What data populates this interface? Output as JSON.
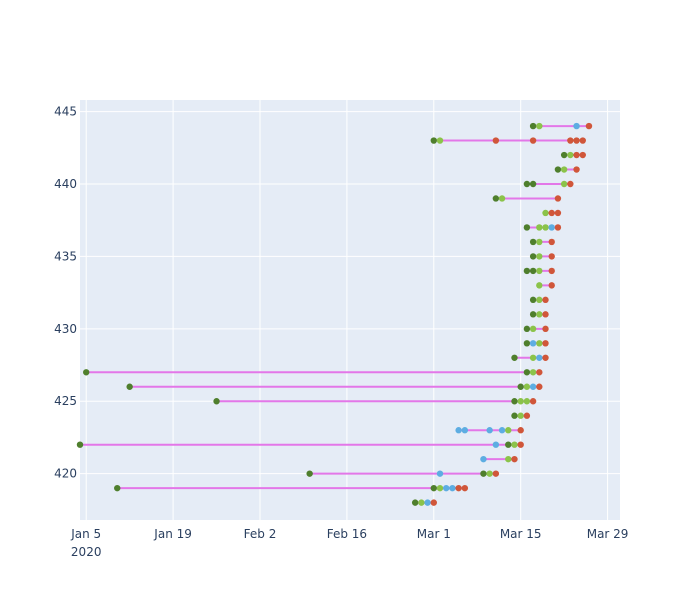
{
  "chart_data": {
    "type": "scatter",
    "title": "",
    "xlabel": "",
    "ylabel": "",
    "x_axis": {
      "type": "date",
      "range": [
        "2020-01-04",
        "2020-03-31"
      ],
      "ticks": [
        {
          "value": "2020-01-05",
          "label": "Jan 5",
          "sublabel": "2020"
        },
        {
          "value": "2020-01-19",
          "label": "Jan 19"
        },
        {
          "value": "2020-02-02",
          "label": "Feb 2"
        },
        {
          "value": "2020-02-16",
          "label": "Feb 16"
        },
        {
          "value": "2020-03-01",
          "label": "Mar 1"
        },
        {
          "value": "2020-03-15",
          "label": "Mar 15"
        },
        {
          "value": "2020-03-29",
          "label": "Mar 29"
        }
      ]
    },
    "y_axis": {
      "range": [
        416.8,
        445.8
      ],
      "ticks": [
        420,
        425,
        430,
        435,
        440,
        445
      ]
    },
    "grid": true,
    "legend": "none",
    "colors": {
      "background": "#e5ecf6",
      "grid": "#ffffff",
      "connector": "#e377e8",
      "dark_green": "#4f7f2d",
      "light_green": "#8bc34a",
      "blue": "#5dade2",
      "red": "#d0563a"
    },
    "rows": [
      {
        "y": 418,
        "points": [
          [
            "2020-02-27",
            "dark_green"
          ],
          [
            "2020-02-28",
            "light_green"
          ],
          [
            "2020-02-29",
            "blue"
          ],
          [
            "2020-03-01",
            "red"
          ]
        ]
      },
      {
        "y": 419,
        "points": [
          [
            "2020-01-10",
            "dark_green"
          ],
          [
            "2020-03-01",
            "dark_green"
          ],
          [
            "2020-03-02",
            "light_green"
          ],
          [
            "2020-03-03",
            "blue"
          ],
          [
            "2020-03-04",
            "blue"
          ],
          [
            "2020-03-05",
            "red"
          ],
          [
            "2020-03-06",
            "red"
          ]
        ]
      },
      {
        "y": 420,
        "points": [
          [
            "2020-02-10",
            "dark_green"
          ],
          [
            "2020-03-02",
            "blue"
          ],
          [
            "2020-03-09",
            "dark_green"
          ],
          [
            "2020-03-10",
            "light_green"
          ],
          [
            "2020-03-11",
            "red"
          ]
        ]
      },
      {
        "y": 421,
        "points": [
          [
            "2020-03-09",
            "blue"
          ],
          [
            "2020-03-13",
            "light_green"
          ],
          [
            "2020-03-14",
            "red"
          ]
        ]
      },
      {
        "y": 422,
        "points": [
          [
            "2020-01-04",
            "dark_green"
          ],
          [
            "2020-03-11",
            "blue"
          ],
          [
            "2020-03-13",
            "dark_green"
          ],
          [
            "2020-03-14",
            "light_green"
          ],
          [
            "2020-03-15",
            "red"
          ]
        ]
      },
      {
        "y": 423,
        "points": [
          [
            "2020-03-05",
            "blue"
          ],
          [
            "2020-03-06",
            "blue"
          ],
          [
            "2020-03-10",
            "blue"
          ],
          [
            "2020-03-12",
            "blue"
          ],
          [
            "2020-03-13",
            "light_green"
          ],
          [
            "2020-03-15",
            "red"
          ]
        ]
      },
      {
        "y": 424,
        "points": [
          [
            "2020-03-14",
            "dark_green"
          ],
          [
            "2020-03-15",
            "light_green"
          ],
          [
            "2020-03-16",
            "red"
          ]
        ]
      },
      {
        "y": 425,
        "points": [
          [
            "2020-01-26",
            "dark_green"
          ],
          [
            "2020-03-14",
            "dark_green"
          ],
          [
            "2020-03-15",
            "light_green"
          ],
          [
            "2020-03-16",
            "light_green"
          ],
          [
            "2020-03-17",
            "red"
          ]
        ]
      },
      {
        "y": 426,
        "points": [
          [
            "2020-01-12",
            "dark_green"
          ],
          [
            "2020-03-15",
            "dark_green"
          ],
          [
            "2020-03-16",
            "light_green"
          ],
          [
            "2020-03-17",
            "blue"
          ],
          [
            "2020-03-18",
            "red"
          ]
        ]
      },
      {
        "y": 427,
        "points": [
          [
            "2020-01-05",
            "dark_green"
          ],
          [
            "2020-03-16",
            "dark_green"
          ],
          [
            "2020-03-17",
            "light_green"
          ],
          [
            "2020-03-18",
            "red"
          ]
        ]
      },
      {
        "y": 428,
        "points": [
          [
            "2020-03-14",
            "dark_green"
          ],
          [
            "2020-03-17",
            "light_green"
          ],
          [
            "2020-03-18",
            "blue"
          ],
          [
            "2020-03-19",
            "red"
          ]
        ]
      },
      {
        "y": 429,
        "points": [
          [
            "2020-03-16",
            "dark_green"
          ],
          [
            "2020-03-17",
            "blue"
          ],
          [
            "2020-03-18",
            "light_green"
          ],
          [
            "2020-03-19",
            "red"
          ]
        ]
      },
      {
        "y": 430,
        "points": [
          [
            "2020-03-16",
            "dark_green"
          ],
          [
            "2020-03-17",
            "light_green"
          ],
          [
            "2020-03-19",
            "red"
          ]
        ]
      },
      {
        "y": 431,
        "points": [
          [
            "2020-03-17",
            "dark_green"
          ],
          [
            "2020-03-18",
            "light_green"
          ],
          [
            "2020-03-19",
            "red"
          ]
        ]
      },
      {
        "y": 432,
        "points": [
          [
            "2020-03-17",
            "dark_green"
          ],
          [
            "2020-03-18",
            "light_green"
          ],
          [
            "2020-03-19",
            "red"
          ]
        ]
      },
      {
        "y": 433,
        "points": [
          [
            "2020-03-18",
            "light_green"
          ],
          [
            "2020-03-20",
            "red"
          ]
        ]
      },
      {
        "y": 434,
        "points": [
          [
            "2020-03-16",
            "dark_green"
          ],
          [
            "2020-03-17",
            "dark_green"
          ],
          [
            "2020-03-18",
            "light_green"
          ],
          [
            "2020-03-20",
            "red"
          ]
        ]
      },
      {
        "y": 435,
        "points": [
          [
            "2020-03-17",
            "dark_green"
          ],
          [
            "2020-03-18",
            "light_green"
          ],
          [
            "2020-03-20",
            "red"
          ]
        ]
      },
      {
        "y": 436,
        "points": [
          [
            "2020-03-17",
            "dark_green"
          ],
          [
            "2020-03-18",
            "light_green"
          ],
          [
            "2020-03-20",
            "red"
          ]
        ]
      },
      {
        "y": 437,
        "points": [
          [
            "2020-03-16",
            "dark_green"
          ],
          [
            "2020-03-18",
            "light_green"
          ],
          [
            "2020-03-19",
            "light_green"
          ],
          [
            "2020-03-20",
            "blue"
          ],
          [
            "2020-03-21",
            "red"
          ]
        ]
      },
      {
        "y": 438,
        "points": [
          [
            "2020-03-19",
            "light_green"
          ],
          [
            "2020-03-20",
            "red"
          ],
          [
            "2020-03-21",
            "red"
          ]
        ]
      },
      {
        "y": 439,
        "points": [
          [
            "2020-03-11",
            "dark_green"
          ],
          [
            "2020-03-12",
            "light_green"
          ],
          [
            "2020-03-21",
            "red"
          ]
        ]
      },
      {
        "y": 440,
        "points": [
          [
            "2020-03-16",
            "dark_green"
          ],
          [
            "2020-03-17",
            "dark_green"
          ],
          [
            "2020-03-22",
            "light_green"
          ],
          [
            "2020-03-23",
            "red"
          ]
        ]
      },
      {
        "y": 441,
        "points": [
          [
            "2020-03-21",
            "dark_green"
          ],
          [
            "2020-03-22",
            "light_green"
          ],
          [
            "2020-03-24",
            "red"
          ]
        ]
      },
      {
        "y": 442,
        "points": [
          [
            "2020-03-22",
            "dark_green"
          ],
          [
            "2020-03-23",
            "light_green"
          ],
          [
            "2020-03-24",
            "red"
          ],
          [
            "2020-03-25",
            "red"
          ]
        ]
      },
      {
        "y": 443,
        "points": [
          [
            "2020-03-01",
            "dark_green"
          ],
          [
            "2020-03-02",
            "light_green"
          ],
          [
            "2020-03-11",
            "red"
          ],
          [
            "2020-03-17",
            "red"
          ],
          [
            "2020-03-23",
            "red"
          ],
          [
            "2020-03-24",
            "red"
          ],
          [
            "2020-03-25",
            "red"
          ]
        ]
      },
      {
        "y": 444,
        "points": [
          [
            "2020-03-17",
            "dark_green"
          ],
          [
            "2020-03-18",
            "light_green"
          ],
          [
            "2020-03-24",
            "blue"
          ],
          [
            "2020-03-26",
            "red"
          ]
        ]
      }
    ]
  }
}
